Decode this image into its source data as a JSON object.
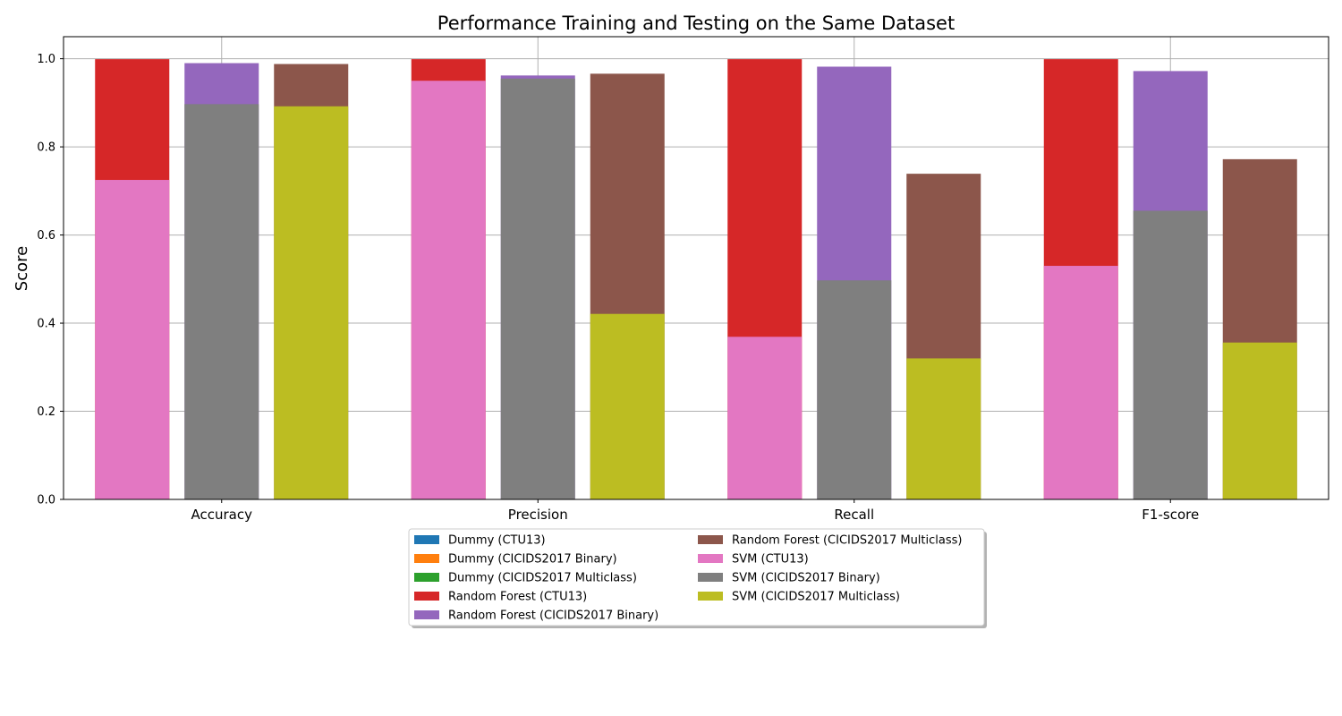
{
  "chart_data": {
    "type": "bar",
    "title": "Performance Training and Testing on the Same Dataset",
    "xlabel": "",
    "ylabel": "Score",
    "ylim": [
      0,
      1.05
    ],
    "yticks": [
      "0.0",
      "0.2",
      "0.4",
      "0.6",
      "0.8",
      "1.0"
    ],
    "grid": true,
    "legend_position": "bottom-center",
    "categories": [
      "Accuracy",
      "Precision",
      "Recall",
      "F1-score"
    ],
    "series": [
      {
        "name": "Dummy (CTU13)",
        "color": "#1f77b4",
        "dataset": 0,
        "values": [
          0,
          0,
          0,
          0
        ]
      },
      {
        "name": "Dummy (CICIDS2017 Binary)",
        "color": "#ff7f0e",
        "dataset": 1,
        "values": [
          0,
          0,
          0,
          0
        ]
      },
      {
        "name": "Dummy (CICIDS2017 Multiclass)",
        "color": "#2ca02c",
        "dataset": 2,
        "values": [
          0,
          0,
          0,
          0
        ]
      },
      {
        "name": "Random Forest (CTU13)",
        "color": "#d62728",
        "dataset": 0,
        "values": [
          0.999,
          0.999,
          0.999,
          0.999
        ]
      },
      {
        "name": "Random Forest (CICIDS2017 Binary)",
        "color": "#9467bd",
        "dataset": 1,
        "values": [
          0.99,
          0.962,
          0.982,
          0.972
        ]
      },
      {
        "name": "Random Forest (CICIDS2017 Multiclass)",
        "color": "#8c564b",
        "dataset": 2,
        "values": [
          0.988,
          0.966,
          0.739,
          0.772
        ]
      },
      {
        "name": "SVM (CTU13)",
        "color": "#e377c2",
        "dataset": 0,
        "values": [
          0.725,
          0.95,
          0.369,
          0.53
        ]
      },
      {
        "name": "SVM (CICIDS2017 Binary)",
        "color": "#7f7f7f",
        "dataset": 1,
        "values": [
          0.897,
          0.955,
          0.497,
          0.655
        ]
      },
      {
        "name": "SVM (CICIDS2017 Multiclass)",
        "color": "#bcbd22",
        "dataset": 2,
        "values": [
          0.892,
          0.421,
          0.32,
          0.356
        ]
      }
    ]
  }
}
